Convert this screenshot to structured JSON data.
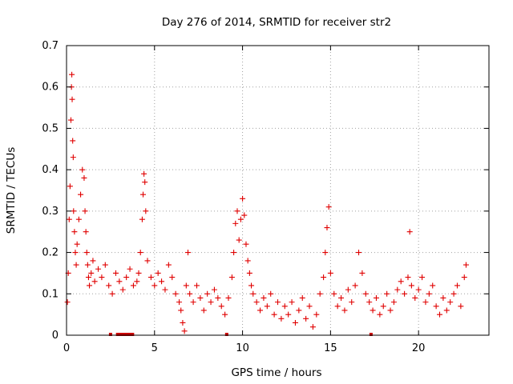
{
  "chart_data": {
    "type": "scatter",
    "title": "Day 276 of 2014, SRMTID for receiver str2",
    "xlabel": "GPS time / hours",
    "ylabel": "SRMTID / TECUs",
    "xlim": [
      0,
      24
    ],
    "ylim": [
      0,
      0.7
    ],
    "xticks": [
      0,
      5,
      10,
      15,
      20
    ],
    "xtick_labels": [
      "0",
      "5",
      "10",
      "15",
      "20"
    ],
    "yticks": [
      0,
      0.1,
      0.2,
      0.3,
      0.4,
      0.5,
      0.6,
      0.7
    ],
    "ytick_labels": [
      "0",
      "0.1",
      "0.2",
      "0.3",
      "0.4",
      "0.5",
      "0.6",
      "0.7"
    ],
    "grid": true,
    "marker": "+",
    "color": "#e00000",
    "series": [
      {
        "name": "SRMTID",
        "x": [
          0.05,
          0.1,
          0.15,
          0.2,
          0.25,
          0.28,
          0.3,
          0.32,
          0.35,
          0.38,
          0.4,
          0.45,
          0.5,
          0.55,
          0.6,
          0.7,
          0.8,
          0.9,
          1.0,
          1.05,
          1.1,
          1.15,
          1.2,
          1.25,
          1.3,
          1.4,
          1.5,
          1.6,
          1.8,
          2.0,
          2.2,
          2.4,
          2.6,
          2.8,
          3.0,
          3.2,
          3.4,
          3.6,
          3.8,
          4.0,
          4.1,
          4.2,
          4.3,
          4.35,
          4.4,
          4.45,
          4.5,
          4.6,
          4.8,
          5.0,
          5.2,
          5.4,
          5.6,
          5.8,
          6.0,
          6.2,
          6.4,
          6.5,
          6.6,
          6.7,
          6.8,
          6.9,
          7.0,
          7.2,
          7.4,
          7.6,
          7.8,
          8.0,
          8.2,
          8.4,
          8.6,
          8.8,
          9.0,
          9.2,
          9.4,
          9.5,
          9.6,
          9.7,
          9.8,
          9.9,
          10.0,
          10.1,
          10.2,
          10.3,
          10.4,
          10.5,
          10.6,
          10.8,
          11.0,
          11.2,
          11.4,
          11.6,
          11.8,
          12.0,
          12.2,
          12.4,
          12.6,
          12.8,
          13.0,
          13.2,
          13.4,
          13.6,
          13.8,
          14.0,
          14.2,
          14.4,
          14.6,
          14.7,
          14.8,
          14.9,
          15.0,
          15.2,
          15.4,
          15.6,
          15.8,
          16.0,
          16.2,
          16.4,
          16.6,
          16.8,
          17.0,
          17.2,
          17.4,
          17.6,
          17.8,
          18.0,
          18.2,
          18.4,
          18.6,
          18.8,
          19.0,
          19.2,
          19.4,
          19.5,
          19.6,
          19.8,
          20.0,
          20.2,
          20.4,
          20.6,
          20.8,
          21.0,
          21.2,
          21.4,
          21.6,
          21.8,
          22.0,
          22.2,
          22.4,
          22.6,
          22.7
        ],
        "y": [
          0.08,
          0.15,
          0.28,
          0.36,
          0.52,
          0.6,
          0.63,
          0.57,
          0.47,
          0.43,
          0.3,
          0.25,
          0.2,
          0.17,
          0.22,
          0.28,
          0.34,
          0.4,
          0.38,
          0.3,
          0.25,
          0.2,
          0.17,
          0.14,
          0.12,
          0.15,
          0.18,
          0.13,
          0.16,
          0.14,
          0.17,
          0.12,
          0.1,
          0.15,
          0.13,
          0.11,
          0.14,
          0.16,
          0.12,
          0.13,
          0.15,
          0.2,
          0.28,
          0.34,
          0.39,
          0.37,
          0.3,
          0.18,
          0.14,
          0.12,
          0.15,
          0.13,
          0.11,
          0.17,
          0.14,
          0.1,
          0.08,
          0.06,
          0.03,
          0.01,
          0.12,
          0.2,
          0.1,
          0.08,
          0.12,
          0.09,
          0.06,
          0.1,
          0.08,
          0.11,
          0.09,
          0.07,
          0.05,
          0.09,
          0.14,
          0.2,
          0.27,
          0.3,
          0.23,
          0.28,
          0.33,
          0.29,
          0.22,
          0.18,
          0.15,
          0.12,
          0.1,
          0.08,
          0.06,
          0.09,
          0.07,
          0.1,
          0.05,
          0.08,
          0.04,
          0.07,
          0.05,
          0.08,
          0.03,
          0.06,
          0.09,
          0.04,
          0.07,
          0.02,
          0.05,
          0.1,
          0.14,
          0.2,
          0.26,
          0.31,
          0.15,
          0.1,
          0.07,
          0.09,
          0.06,
          0.11,
          0.08,
          0.12,
          0.2,
          0.15,
          0.1,
          0.08,
          0.06,
          0.09,
          0.05,
          0.07,
          0.1,
          0.06,
          0.08,
          0.11,
          0.13,
          0.1,
          0.14,
          0.25,
          0.12,
          0.09,
          0.11,
          0.14,
          0.08,
          0.1,
          0.12,
          0.07,
          0.05,
          0.09,
          0.06,
          0.08,
          0.1,
          0.12,
          0.07,
          0.14,
          0.17
        ]
      }
    ],
    "data_gaps_hours": [
      2.5,
      2.9,
      3.05,
      3.2,
      3.35,
      3.5,
      3.65,
      3.75,
      9.1,
      17.3
    ]
  }
}
